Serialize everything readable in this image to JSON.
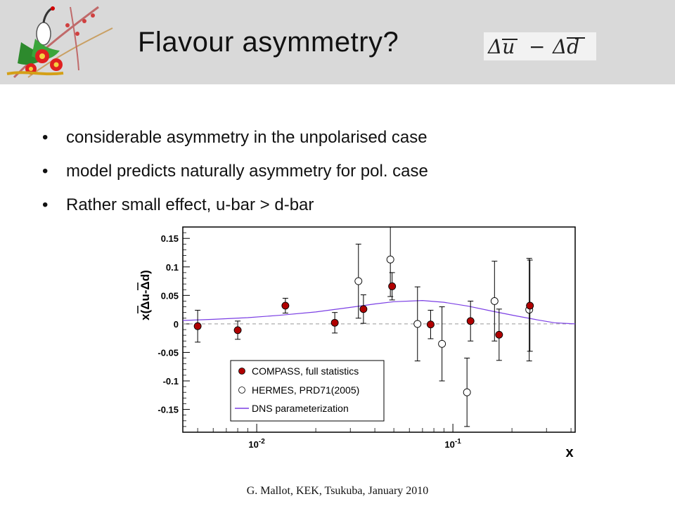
{
  "slide": {
    "title": "Flavour asymmetry?",
    "formula": {
      "left": "Δu",
      "op": "−",
      "right": "Δd"
    },
    "bullets": [
      "considerable asymmetry in the unpolarised case",
      "model predicts naturally asymmetry for pol. case",
      "Rather small effect, u-bar > d-bar"
    ],
    "footer": "G. Mallot, KEK, Tsukuba, January 2010"
  },
  "colors": {
    "header_bg": "#d9d9d9",
    "compass": "#b00000",
    "dns": "#7b3fe4"
  },
  "chart_data": {
    "type": "scatter",
    "xlabel": "x",
    "ylabel": "x(Δu-Δd)",
    "xscale": "log",
    "xlim": [
      0.0042,
      0.42
    ],
    "ylim": [
      -0.19,
      0.17
    ],
    "yticks": [
      -0.15,
      -0.1,
      -0.05,
      0,
      0.05,
      0.1,
      0.15
    ],
    "ytick_labels": [
      "-0.15",
      "-0.1",
      "-0.05",
      "0",
      "0.05",
      "0.1",
      "0.15"
    ],
    "xtick_labels": [
      {
        "value": 0.01,
        "base": "10",
        "exp": "-2"
      },
      {
        "value": 0.1,
        "base": "10",
        "exp": "-1"
      }
    ],
    "zero_line": true,
    "legend_position": "bottom-left",
    "series": [
      {
        "name": "COMPASS, full statistics",
        "marker": "filled-circle",
        "points": [
          {
            "x": 0.005,
            "y": -0.004,
            "err": 0.028
          },
          {
            "x": 0.008,
            "y": -0.011,
            "err": 0.016
          },
          {
            "x": 0.014,
            "y": 0.032,
            "err": 0.013
          },
          {
            "x": 0.025,
            "y": 0.002,
            "err": 0.018
          },
          {
            "x": 0.035,
            "y": 0.026,
            "err": 0.025
          },
          {
            "x": 0.049,
            "y": 0.066,
            "err": 0.024
          },
          {
            "x": 0.077,
            "y": -0.001,
            "err": 0.025
          },
          {
            "x": 0.123,
            "y": 0.005,
            "err": 0.035
          },
          {
            "x": 0.172,
            "y": -0.019,
            "err": 0.045
          },
          {
            "x": 0.247,
            "y": 0.032,
            "err": 0.08
          }
        ]
      },
      {
        "name": "HERMES, PRD71(2005)",
        "marker": "open-circle",
        "points": [
          {
            "x": 0.033,
            "y": 0.075,
            "err": 0.065
          },
          {
            "x": 0.048,
            "y": 0.113,
            "err": 0.065
          },
          {
            "x": 0.066,
            "y": 0.0,
            "err": 0.065
          },
          {
            "x": 0.088,
            "y": -0.035,
            "err": 0.065
          },
          {
            "x": 0.118,
            "y": -0.12,
            "err": 0.06
          },
          {
            "x": 0.163,
            "y": 0.04,
            "err": 0.07
          },
          {
            "x": 0.245,
            "y": 0.025,
            "err": 0.09
          }
        ]
      },
      {
        "name": "DNS parameterization",
        "marker": "line",
        "points": [
          {
            "x": 0.0042,
            "y": 0.006
          },
          {
            "x": 0.006,
            "y": 0.008
          },
          {
            "x": 0.009,
            "y": 0.011
          },
          {
            "x": 0.013,
            "y": 0.015
          },
          {
            "x": 0.02,
            "y": 0.021
          },
          {
            "x": 0.03,
            "y": 0.029
          },
          {
            "x": 0.04,
            "y": 0.035
          },
          {
            "x": 0.05,
            "y": 0.039
          },
          {
            "x": 0.07,
            "y": 0.041
          },
          {
            "x": 0.09,
            "y": 0.038
          },
          {
            "x": 0.12,
            "y": 0.031
          },
          {
            "x": 0.16,
            "y": 0.022
          },
          {
            "x": 0.21,
            "y": 0.014
          },
          {
            "x": 0.27,
            "y": 0.007
          },
          {
            "x": 0.33,
            "y": 0.002
          },
          {
            "x": 0.42,
            "y": 0.0
          }
        ]
      }
    ]
  }
}
